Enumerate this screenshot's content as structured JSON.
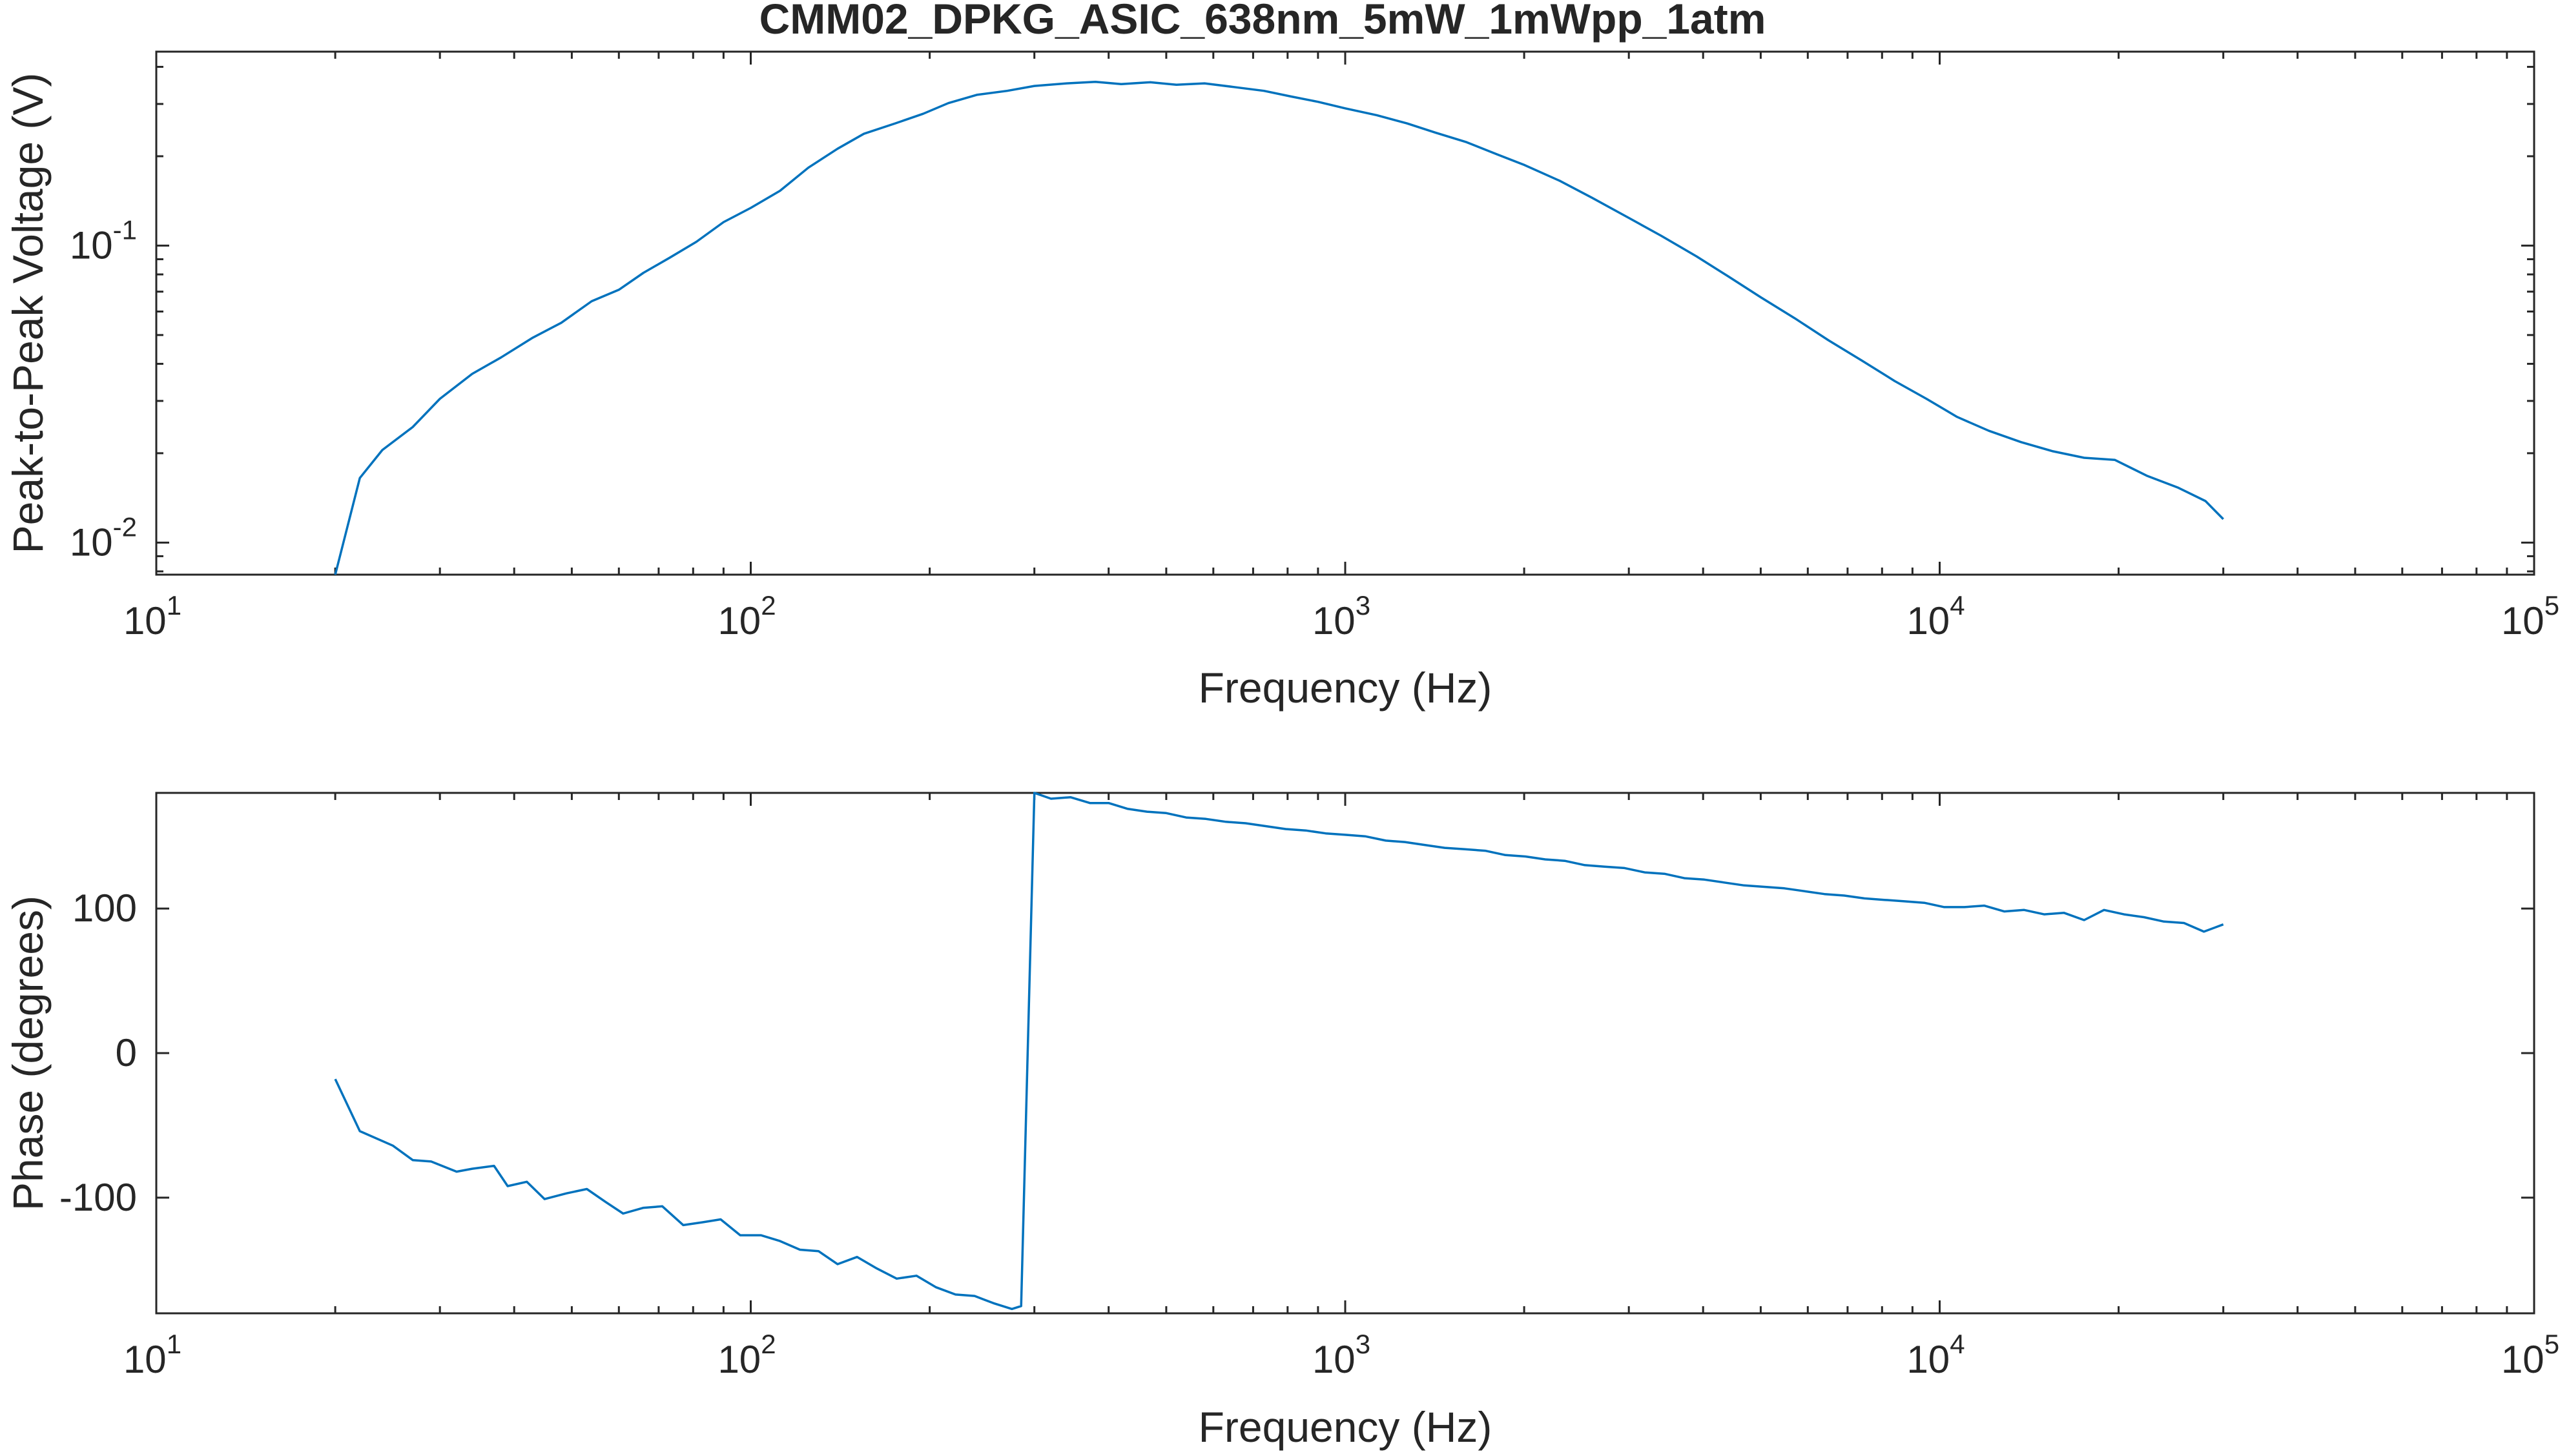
{
  "figure": {
    "title": "CMM02_DPKG_ASIC_638nm_5mW_1mWpp_1atm"
  },
  "chart_data": [
    {
      "type": "line",
      "xlabel": "Frequency (Hz)",
      "ylabel": "Peak-to-Peak Voltage (V)",
      "xscale": "log",
      "yscale": "log",
      "xlim": [
        10,
        100000
      ],
      "ylim": [
        0.0078,
        0.45
      ],
      "x_ticks": [
        {
          "base": "10",
          "exp": "1",
          "value": 10
        },
        {
          "base": "10",
          "exp": "2",
          "value": 100
        },
        {
          "base": "10",
          "exp": "3",
          "value": 1000
        },
        {
          "base": "10",
          "exp": "4",
          "value": 10000
        },
        {
          "base": "10",
          "exp": "5",
          "value": 100000
        }
      ],
      "y_ticks": [
        {
          "base": "10",
          "exp": "-2",
          "value": 0.01
        },
        {
          "base": "10",
          "exp": "-1",
          "value": 0.1
        }
      ],
      "grid": false,
      "color": "#0072BD",
      "x": [
        20,
        22,
        24,
        27,
        30,
        34,
        38,
        43,
        48,
        54,
        60,
        66,
        73,
        81,
        90,
        100,
        112,
        125,
        140,
        155,
        175,
        195,
        215,
        240,
        270,
        300,
        340,
        380,
        420,
        470,
        520,
        580,
        650,
        730,
        810,
        900,
        1000,
        1130,
        1270,
        1420,
        1600,
        1800,
        2000,
        2300,
        2600,
        3000,
        3400,
        3900,
        4400,
        5000,
        5700,
        6500,
        7400,
        8400,
        9500,
        10700,
        12100,
        13700,
        15500,
        17500,
        19700,
        22300,
        25200,
        28000,
        30000
      ],
      "y": [
        0.0078,
        0.0165,
        0.0205,
        0.0245,
        0.0305,
        0.037,
        0.042,
        0.049,
        0.055,
        0.065,
        0.071,
        0.081,
        0.091,
        0.103,
        0.12,
        0.134,
        0.153,
        0.183,
        0.212,
        0.238,
        0.258,
        0.278,
        0.302,
        0.322,
        0.332,
        0.345,
        0.352,
        0.356,
        0.35,
        0.355,
        0.348,
        0.352,
        0.342,
        0.332,
        0.318,
        0.305,
        0.29,
        0.275,
        0.258,
        0.24,
        0.223,
        0.203,
        0.187,
        0.165,
        0.145,
        0.124,
        0.108,
        0.092,
        0.079,
        0.067,
        0.057,
        0.048,
        0.041,
        0.035,
        0.0305,
        0.0265,
        0.0238,
        0.0218,
        0.0203,
        0.0193,
        0.019,
        0.0168,
        0.0153,
        0.0138,
        0.012
      ]
    },
    {
      "type": "line",
      "xlabel": "Frequency (Hz)",
      "ylabel": "Phase (degrees)",
      "xscale": "log",
      "yscale": "linear",
      "xlim": [
        10,
        100000
      ],
      "ylim": [
        -180,
        180
      ],
      "x_ticks": [
        {
          "base": "10",
          "exp": "1",
          "value": 10
        },
        {
          "base": "10",
          "exp": "2",
          "value": 100
        },
        {
          "base": "10",
          "exp": "3",
          "value": 1000
        },
        {
          "base": "10",
          "exp": "4",
          "value": 10000
        },
        {
          "base": "10",
          "exp": "5",
          "value": 100000
        }
      ],
      "y_ticks": [
        {
          "label": "-100",
          "value": -100
        },
        {
          "label": "0",
          "value": 0
        },
        {
          "label": "100",
          "value": 100
        }
      ],
      "grid": false,
      "color": "#0072BD",
      "x": [
        20,
        22,
        25,
        27,
        29,
        32,
        34,
        37,
        39,
        42,
        45,
        49,
        53,
        57,
        61,
        66,
        71,
        77,
        83,
        89,
        96,
        104,
        112,
        121,
        130,
        140,
        151,
        163,
        176,
        190,
        205,
        221,
        238,
        256,
        275,
        285,
        300,
        320,
        345,
        372,
        400,
        430,
        464,
        500,
        540,
        583,
        630,
        680,
        735,
        794,
        858,
        927,
        1000,
        1080,
        1170,
        1260,
        1360,
        1470,
        1590,
        1720,
        1860,
        2010,
        2170,
        2340,
        2530,
        2730,
        2950,
        3190,
        3450,
        3720,
        4020,
        4340,
        4690,
        5070,
        5480,
        5920,
        6400,
        6910,
        7470,
        8070,
        8720,
        9420,
        10180,
        11000,
        11880,
        12840,
        13870,
        14990,
        16190,
        17500,
        18900,
        20420,
        22060,
        23840,
        25760,
        27830,
        30000
      ],
      "y": [
        -18,
        -54,
        -64,
        -74,
        -75,
        -82,
        -80,
        -78,
        -92,
        -89,
        -101,
        -97,
        -94,
        -103,
        -111,
        -107,
        -106,
        -119,
        -117,
        -115,
        -126,
        -126,
        -130,
        -136,
        -137,
        -146,
        -141,
        -149,
        -156,
        -154,
        -162,
        -167,
        -168,
        -173,
        -177,
        -175,
        181,
        176,
        177,
        173,
        173,
        169,
        167,
        166,
        163,
        162,
        160,
        159,
        157,
        155,
        154,
        152,
        151,
        150,
        147,
        146,
        144,
        142,
        141,
        140,
        137,
        136,
        134,
        133,
        130,
        129,
        128,
        125,
        124,
        121,
        120,
        118,
        116,
        115,
        114,
        112,
        110,
        109,
        107,
        106,
        105,
        104,
        101,
        101,
        102,
        98,
        99,
        96,
        97,
        92,
        99,
        96,
        94,
        91,
        90,
        84,
        89
      ]
    }
  ]
}
